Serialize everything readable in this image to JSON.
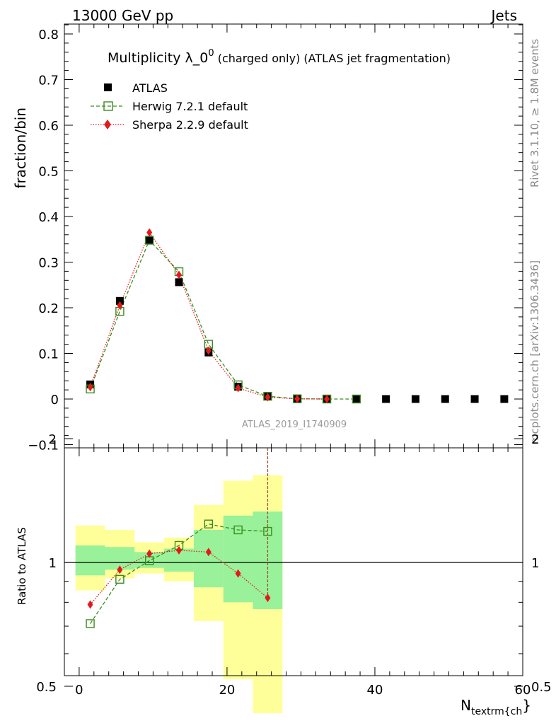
{
  "header": {
    "left": "13000 GeV pp",
    "right": "Jets"
  },
  "side": {
    "rivet": "Rivet 3.1.10, ≥ 1.8M events",
    "mcplots": "mcplots.cern.ch [arXiv:1306.3436]"
  },
  "watermark": "ATLAS_2019_I1740909",
  "colors": {
    "herwig": "#3a8c1e",
    "sherpa": "#e31a1c",
    "atlas": "#000000",
    "band_yellow": "#ffff99",
    "band_green": "#99f299"
  },
  "chart_data": [
    {
      "type": "line",
      "title_main": "Multiplicity λ_0",
      "title_sup": "0",
      "title_rest": " (charged only) (ATLAS jet fragmentation)",
      "ylabel": "fraction/bin",
      "xlim": [
        -2,
        60
      ],
      "ylim": [
        -0.1,
        0.82
      ],
      "yticks": [
        "−0.1",
        "0",
        "0.1",
        "0.2",
        "0.3",
        "0.4",
        "0.5",
        "0.6",
        "0.7",
        "0.8"
      ],
      "series": [
        {
          "name": "ATLAS",
          "x": [
            1.5,
            5.5,
            9.5,
            13.5,
            17.5,
            21.5,
            25.5,
            29.5,
            33.5,
            37.5,
            41.5,
            45.5,
            49.5,
            53.5,
            57.5
          ],
          "y": [
            0.032,
            0.215,
            0.348,
            0.256,
            0.102,
            0.027,
            0.006,
            0.001,
            0.0,
            0.0,
            0.0,
            0.0,
            0.0,
            0.0,
            0.0
          ]
        },
        {
          "name": "Herwig 7.2.1 default",
          "x": [
            1.5,
            5.5,
            9.5,
            13.5,
            17.5,
            21.5,
            25.5,
            29.5,
            33.5,
            37.5
          ],
          "y": [
            0.022,
            0.192,
            0.348,
            0.279,
            0.12,
            0.031,
            0.006,
            0.0005,
            0.0,
            0.0
          ]
        },
        {
          "name": "Sherpa 2.2.9 default",
          "x": [
            1.5,
            5.5,
            9.5,
            13.5,
            17.5,
            21.5,
            25.5,
            29.5,
            33.5
          ],
          "y": [
            0.026,
            0.205,
            0.365,
            0.272,
            0.106,
            0.024,
            0.004,
            0.0004,
            0.0
          ]
        }
      ]
    },
    {
      "type": "line",
      "ylabel": "Ratio to ATLAS",
      "xlabel_main": "N",
      "xlabel_sub": "textrm{ch",
      "xlabel_brace": "}",
      "xlim": [
        -2,
        60
      ],
      "ylim": [
        0.4,
        2.3
      ],
      "yticks": [
        "0.5",
        "1",
        "2"
      ],
      "xticks": [
        "0",
        "20",
        "40",
        "60"
      ],
      "bands": [
        {
          "x0": -0.5,
          "x1": 3.5,
          "yellow": [
            0.855,
            1.23
          ],
          "green": [
            0.93,
            1.1
          ]
        },
        {
          "x0": 3.5,
          "x1": 7.5,
          "yellow": [
            0.915,
            1.2
          ],
          "green": [
            0.96,
            1.09
          ]
        },
        {
          "x0": 7.5,
          "x1": 11.5,
          "yellow": [
            0.94,
            1.12
          ],
          "green": [
            0.97,
            1.06
          ]
        },
        {
          "x0": 11.5,
          "x1": 15.5,
          "yellow": [
            0.9,
            1.15
          ],
          "green": [
            0.95,
            1.08
          ]
        },
        {
          "x0": 15.5,
          "x1": 19.5,
          "yellow": [
            0.72,
            1.38
          ],
          "green": [
            0.87,
            1.2
          ]
        },
        {
          "x0": 19.5,
          "x1": 23.5,
          "yellow": [
            0.52,
            1.58
          ],
          "green": [
            0.8,
            1.3
          ]
        },
        {
          "x0": 23.5,
          "x1": 27.5,
          "yellow": [
            0.43,
            1.63
          ],
          "green": [
            0.77,
            1.33
          ]
        }
      ],
      "series": [
        {
          "name": "Herwig 7.2.1 default",
          "x": [
            1.5,
            5.5,
            9.5,
            13.5,
            17.5,
            21.5,
            25.5
          ],
          "y": [
            0.71,
            0.91,
            1.01,
            1.1,
            1.24,
            1.2,
            1.19
          ]
        },
        {
          "name": "Sherpa 2.2.9 default",
          "x": [
            1.5,
            5.5,
            9.5,
            13.5,
            17.5,
            21.5,
            25.5
          ],
          "y": [
            0.79,
            0.96,
            1.05,
            1.07,
            1.06,
            0.94,
            0.82
          ],
          "last_err_up": true
        }
      ]
    }
  ]
}
